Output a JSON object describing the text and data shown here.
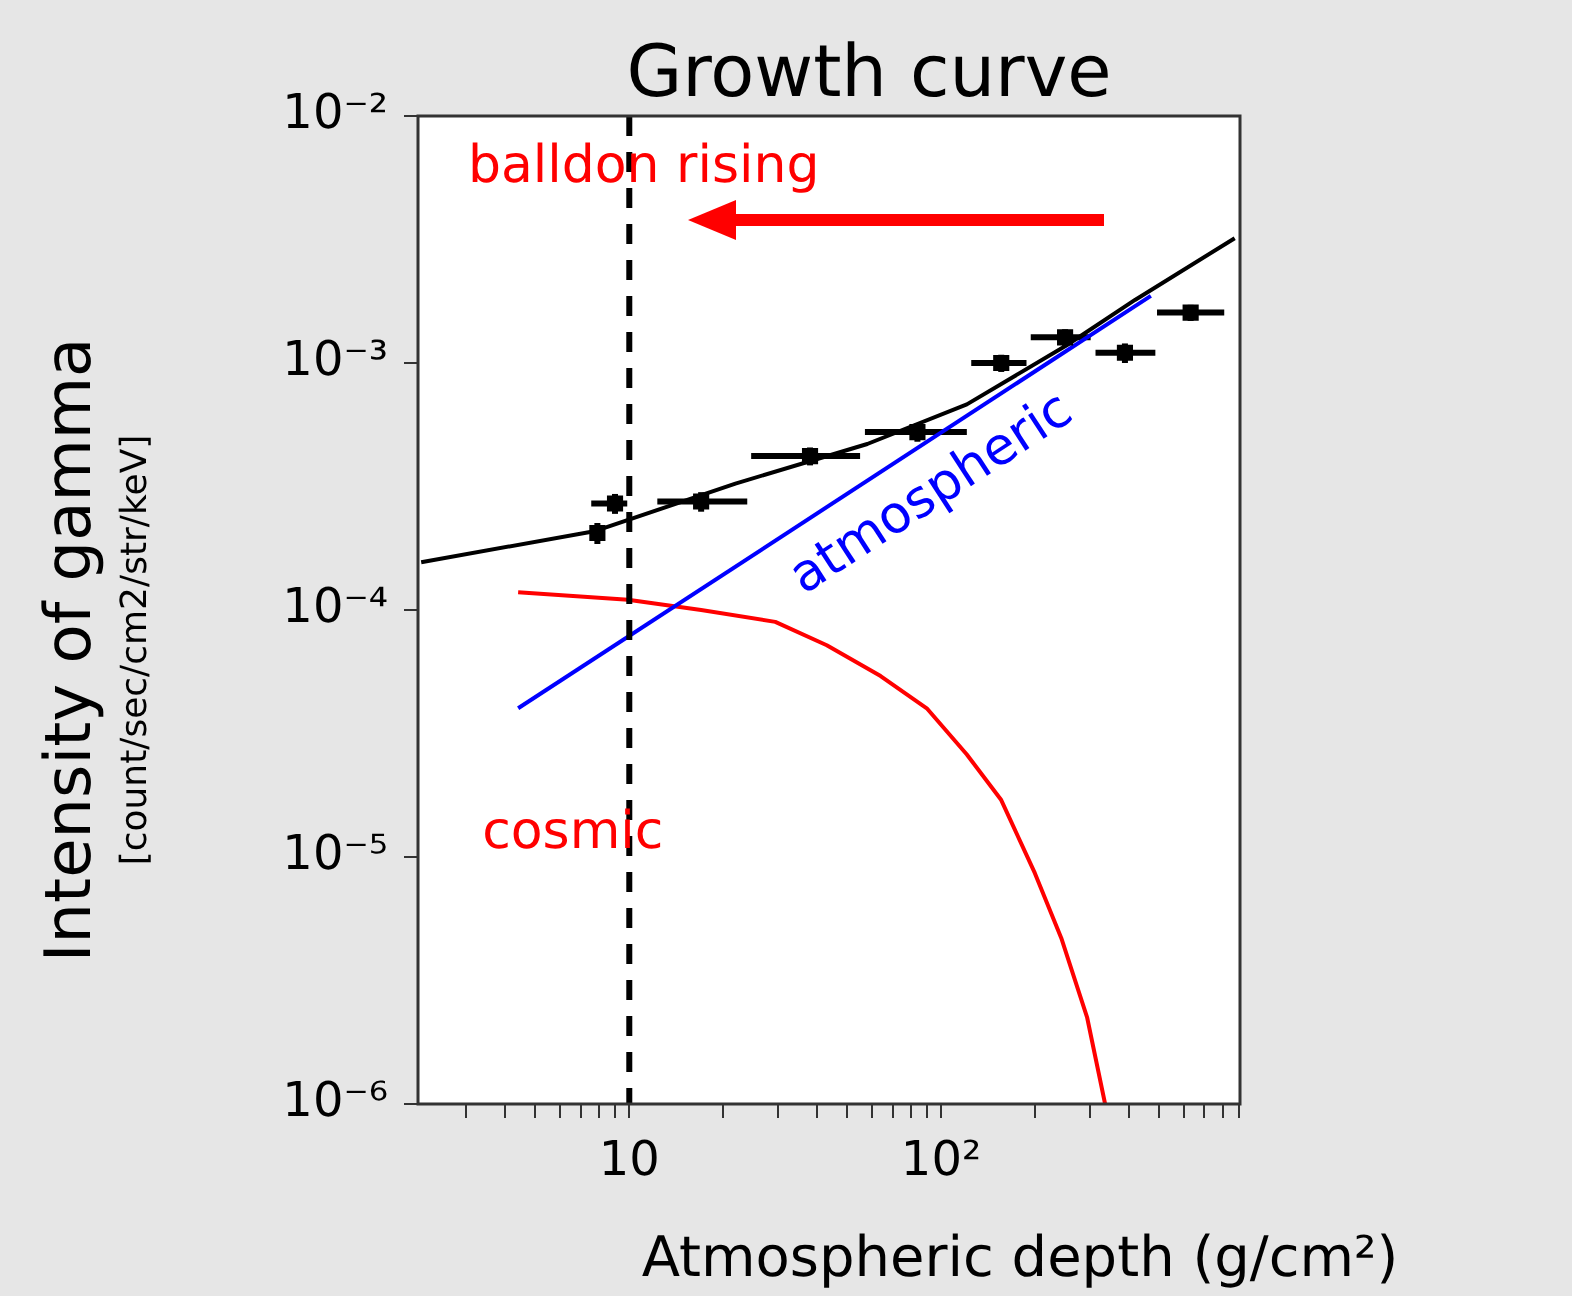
{
  "chart_data": {
    "type": "line",
    "title": "Growth curve",
    "xlabel": "Atmospheric depth (g/cm²)",
    "ylabel": "Intensity of gamma\n[count/sec/cm2/str/keV]",
    "log": "xy",
    "grid": false,
    "legend": false,
    "xlim": [
      2.1,
      910
    ],
    "ylim": [
      1e-06,
      0.01
    ],
    "xticks": [
      {
        "value": 3,
        "label": null
      },
      {
        "value": 4,
        "label": null
      },
      {
        "value": 5,
        "label": null
      },
      {
        "value": 6,
        "label": null
      },
      {
        "value": 7,
        "label": null
      },
      {
        "value": 8,
        "label": null
      },
      {
        "value": 9,
        "label": null
      },
      {
        "value": 10,
        "label": "10"
      },
      {
        "value": 20,
        "label": null
      },
      {
        "value": 30,
        "label": null
      },
      {
        "value": 40,
        "label": null
      },
      {
        "value": 50,
        "label": null
      },
      {
        "value": 60,
        "label": null
      },
      {
        "value": 70,
        "label": null
      },
      {
        "value": 80,
        "label": null
      },
      {
        "value": 90,
        "label": null
      },
      {
        "value": 100,
        "label": "10²"
      },
      {
        "value": 200,
        "label": null
      },
      {
        "value": 300,
        "label": null
      },
      {
        "value": 400,
        "label": null
      },
      {
        "value": 500,
        "label": null
      },
      {
        "value": 600,
        "label": null
      },
      {
        "value": 700,
        "label": null
      },
      {
        "value": 800,
        "label": null
      },
      {
        "value": 900,
        "label": null
      }
    ],
    "yticks": [
      {
        "value": 1e-06,
        "label": "10⁻⁶"
      },
      {
        "value": 1e-05,
        "label": "10⁻⁵"
      },
      {
        "value": 0.0001,
        "label": "10⁻⁴"
      },
      {
        "value": 0.001,
        "label": "10⁻³"
      },
      {
        "value": 0.01,
        "label": "10⁻²"
      }
    ],
    "series": [
      {
        "type": "scatter",
        "color": "#000000",
        "marker": "square",
        "x": [
          7.9,
          9.0,
          17,
          38,
          84,
          156,
          250,
          389,
          632
        ],
        "values": [
          0.000205,
          0.00027,
          0.000275,
          0.00042,
          0.000525,
          0.001,
          0.00127,
          0.0011,
          0.0016
        ],
        "xerrors": [
          null,
          [
            7.55,
            9.85
          ],
          [
            12.3,
            23.9
          ],
          [
            24.6,
            55
          ],
          [
            57,
            121
          ],
          [
            125,
            188
          ],
          [
            194,
            302
          ],
          [
            313,
            487
          ],
          [
            493,
            810
          ]
        ],
        "errors": [
          [
            0.000185,
            0.000225
          ],
          [
            0.000245,
            0.000295
          ],
          [
            0.00025,
            0.0003
          ],
          [
            0.000385,
            0.000455
          ],
          [
            0.00048,
            0.00057
          ],
          [
            0.00092,
            0.00108
          ],
          [
            0.00117,
            0.00137
          ],
          [
            0.001,
            0.0012
          ],
          [
            0.00148,
            0.00172
          ]
        ]
      },
      {
        "color": "#000000",
        "x": [
          2.15,
          7.8,
          21.9,
          58,
          121,
          253,
          419,
          875
        ],
        "values": [
          0.000156,
          0.000209,
          0.000325,
          0.00047,
          0.00068,
          0.00118,
          0.0018,
          0.0032
        ]
      },
      {
        "name": "atmospheric",
        "color": "#0000ff",
        "x": [
          4.4,
          471
        ],
        "values": [
          4e-05,
          0.00187
        ]
      },
      {
        "name": "cosmic",
        "color": "#ff0000",
        "x": [
          4.4,
          9.9,
          17,
          29.4,
          43,
          64,
          90,
          121,
          156,
          200,
          243,
          294,
          336
        ],
        "values": [
          0.000118,
          0.00011,
          0.0001,
          8.95e-05,
          7.2e-05,
          5.4e-05,
          4e-05,
          2.6e-05,
          1.7e-05,
          8.6e-06,
          4.7e-06,
          2.25e-06,
          1e-06
        ]
      }
    ],
    "ref_lines": [
      {
        "axis": "x",
        "value": 10,
        "color": "#000000",
        "line_style": "dashed"
      }
    ],
    "annotations": [
      "balldon rising"
    ]
  }
}
